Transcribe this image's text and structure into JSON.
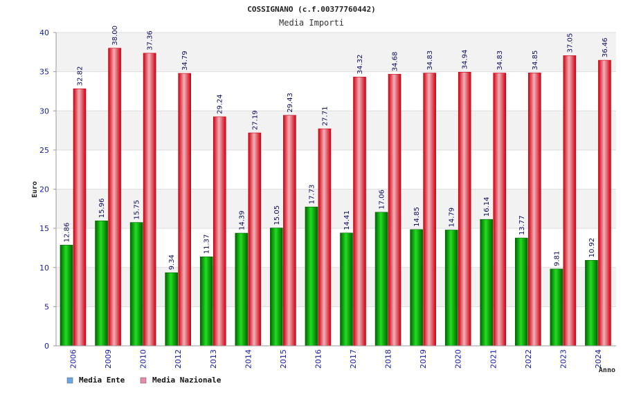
{
  "chart_data": {
    "type": "bar",
    "title": "COSSIGNANO (c.f.00377760442)",
    "subtitle": "Media Importi",
    "xlabel": "Anno",
    "ylabel": "Euro",
    "ylim": [
      0,
      40
    ],
    "yticks": [
      0,
      5,
      10,
      15,
      20,
      25,
      30,
      35,
      40
    ],
    "categories": [
      "2006",
      "2009",
      "2010",
      "2012",
      "2013",
      "2014",
      "2015",
      "2016",
      "2017",
      "2018",
      "2019",
      "2020",
      "2021",
      "2022",
      "2023",
      "2024"
    ],
    "series": [
      {
        "name": "Media Ente",
        "values": [
          12.86,
          15.96,
          15.75,
          9.34,
          11.37,
          14.39,
          15.05,
          17.73,
          14.41,
          17.06,
          14.85,
          14.79,
          16.14,
          13.77,
          9.81,
          10.92
        ],
        "labels": [
          "12.86",
          "15.96",
          "15.75",
          "9.34",
          "11.37",
          "14.39",
          "15.05",
          "17.73",
          "14.41",
          "17.06",
          "14.85",
          "14.79",
          "16.14",
          "13.77",
          "9.81",
          "10.92"
        ]
      },
      {
        "name": "Media Nazionale",
        "values": [
          32.82,
          38.0,
          37.36,
          34.79,
          29.24,
          27.19,
          29.43,
          27.71,
          34.32,
          34.68,
          34.83,
          34.94,
          34.83,
          34.85,
          37.05,
          36.46
        ],
        "labels": [
          "32.82",
          "38.00",
          "37.36",
          "34.79",
          "29.24",
          "27.19",
          "29.43",
          "27.71",
          "34.32",
          "34.68",
          "34.83",
          "34.94",
          "34.83",
          "34.85",
          "37.05",
          "36.46"
        ]
      }
    ],
    "legend": {
      "position": "bottom-left",
      "entries": [
        {
          "label": "Media Ente",
          "color": "#6aa6e8"
        },
        {
          "label": "Media Nazionale",
          "color": "#e88aa8"
        }
      ]
    },
    "colors": {
      "ente_dark": "#006400",
      "ente_light": "#22dd22",
      "naz_dark": "#cc0011",
      "naz_light": "#f4b0b8",
      "band": "#f2f2f2",
      "grid": "#dddddd"
    }
  }
}
